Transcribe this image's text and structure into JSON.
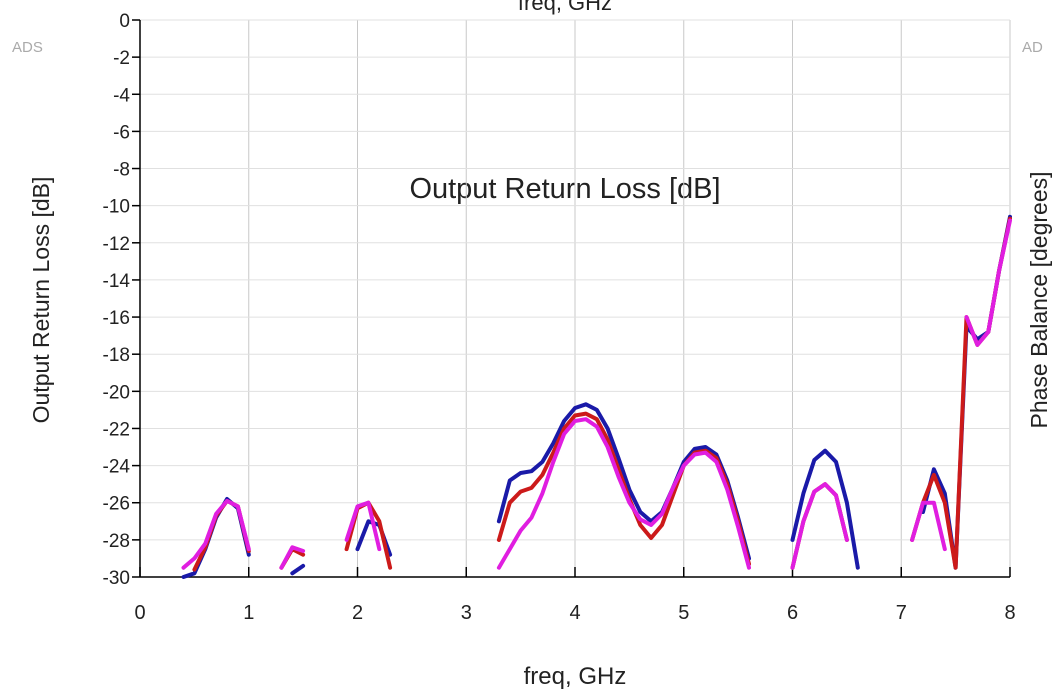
{
  "chart_data": {
    "type": "line",
    "top_label": "freq, GHz",
    "watermark_left": "ADS",
    "watermark_right": "AD",
    "title": "Output Return Loss [dB]",
    "x_label": "freq, GHz",
    "y_label": "Output Return Loss [dB]",
    "y2_label": "Phase Balance [degrees]",
    "xlim": [
      0,
      8
    ],
    "xticks": [
      0,
      1,
      2,
      3,
      4,
      5,
      6,
      7,
      8
    ],
    "ylim": [
      -30,
      0
    ],
    "yticks": [
      0,
      -2,
      -4,
      -6,
      -8,
      -10,
      -12,
      -14,
      -16,
      -18,
      -20,
      -22,
      -24,
      -26,
      -28,
      -30
    ],
    "grid": true,
    "x": [
      0.4,
      0.5,
      0.6,
      0.7,
      0.8,
      0.9,
      1.0,
      1.1,
      1.2,
      1.3,
      1.4,
      1.5,
      1.6,
      1.7,
      1.8,
      1.9,
      2.0,
      2.1,
      2.2,
      2.3,
      2.4,
      2.5,
      2.6,
      2.7,
      2.8,
      2.9,
      3.0,
      3.1,
      3.2,
      3.3,
      3.4,
      3.5,
      3.6,
      3.7,
      3.8,
      3.9,
      4.0,
      4.1,
      4.2,
      4.3,
      4.4,
      4.5,
      4.6,
      4.7,
      4.8,
      4.9,
      5.0,
      5.1,
      5.2,
      5.3,
      5.4,
      5.5,
      5.6,
      5.7,
      5.8,
      5.9,
      6.0,
      6.1,
      6.2,
      6.3,
      6.4,
      6.5,
      6.6,
      6.7,
      6.8,
      6.9,
      7.0,
      7.1,
      7.2,
      7.3,
      7.4,
      7.5,
      7.6,
      7.7,
      7.8,
      7.9,
      8.0
    ],
    "series": [
      {
        "color": "#1a1aa8",
        "values": [
          -30,
          -29.8,
          -28.5,
          -26.8,
          -25.8,
          -26.3,
          -28.8,
          null,
          null,
          null,
          -29.8,
          -29.4,
          null,
          null,
          null,
          null,
          -28.5,
          -27,
          -27.2,
          -28.8,
          null,
          null,
          null,
          null,
          null,
          null,
          null,
          null,
          null,
          -27,
          -24.8,
          -24.4,
          -24.3,
          -23.8,
          -22.8,
          -21.6,
          -20.9,
          -20.7,
          -21.0,
          -22.0,
          -23.6,
          -25.3,
          -26.5,
          -27.0,
          -26.5,
          -25.2,
          -23.8,
          -23.1,
          -23.0,
          -23.4,
          -24.8,
          -26.8,
          -29.0,
          null,
          null,
          null,
          -28,
          -25.5,
          -23.7,
          -23.2,
          -23.8,
          -26.0,
          -29.5,
          null,
          null,
          null,
          null,
          null,
          -26.5,
          -24.2,
          -25.5,
          -29.5,
          -16.5,
          -17.2,
          -16.8,
          -13.5,
          -10.6
        ]
      },
      {
        "color": "#cc1a1a",
        "values": [
          null,
          -29.6,
          -28.4,
          -26.7,
          -25.9,
          -26.2,
          -28.6,
          null,
          null,
          -29.5,
          -28.5,
          -28.8,
          null,
          null,
          null,
          -28.5,
          -26.3,
          -26.0,
          -27.0,
          -29.5,
          null,
          null,
          null,
          null,
          null,
          null,
          null,
          null,
          null,
          -28,
          -26,
          -25.4,
          -25.2,
          -24.5,
          -23.3,
          -22.0,
          -21.3,
          -21.2,
          -21.5,
          -22.6,
          -24.2,
          -25.8,
          -27.2,
          -27.9,
          -27.2,
          -25.6,
          -24.0,
          -23.3,
          -23.2,
          -23.6,
          -25.0,
          -27.0,
          -29.3,
          null,
          null,
          null,
          -29.5,
          -27.0,
          -25.4,
          -25.0,
          -25.6,
          -28.0,
          null,
          null,
          null,
          null,
          null,
          -28.0,
          -26,
          -24.5,
          -26,
          -29.5,
          -16,
          -17.5,
          -16.8,
          -13.5,
          -10.7
        ]
      },
      {
        "color": "#e01ee0",
        "values": [
          -29.5,
          -29.0,
          -28.2,
          -26.6,
          -25.9,
          -26.2,
          -28.5,
          null,
          null,
          -29.5,
          -28.4,
          -28.6,
          null,
          null,
          null,
          -28.0,
          -26.2,
          -26.0,
          -28.5,
          null,
          null,
          null,
          null,
          null,
          null,
          null,
          null,
          null,
          null,
          -29.5,
          -28.5,
          -27.5,
          -26.8,
          -25.5,
          -23.8,
          -22.3,
          -21.6,
          -21.5,
          -21.9,
          -23.0,
          -24.6,
          -26.0,
          -26.9,
          -27.2,
          -26.6,
          -25.2,
          -24.0,
          -23.4,
          -23.3,
          -23.8,
          -25.3,
          -27.3,
          -29.5,
          null,
          null,
          null,
          -29.5,
          -27.0,
          -25.4,
          -25.0,
          -25.6,
          -28.0,
          null,
          null,
          null,
          null,
          null,
          -28.0,
          -26.0,
          -26.0,
          -28.5,
          null,
          -16,
          -17.5,
          -16.8,
          -13.5,
          -10.8
        ]
      }
    ]
  }
}
